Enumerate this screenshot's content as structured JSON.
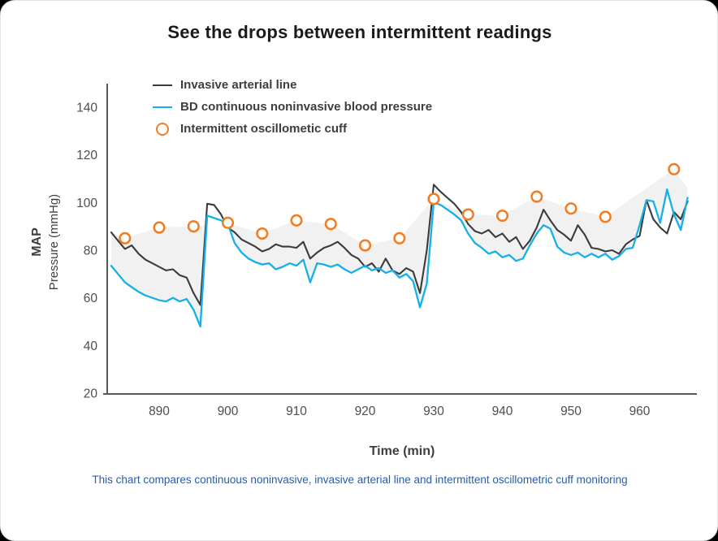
{
  "title": "See the drops between intermittent readings",
  "caption": "This chart compares continuous noninvasive, invasive arterial line and intermittent oscillometric cuff monitoring",
  "y_axis": {
    "label_line1": "MAP",
    "label_line2": "Pressure (mmHg)"
  },
  "x_axis": {
    "title": "Time (min)"
  },
  "chart_data": {
    "type": "line",
    "title": "See the drops between intermittent readings",
    "xlabel": "Time (min)",
    "ylabel": "MAP Pressure (mmHg)",
    "xlim": [
      882,
      968
    ],
    "ylim": [
      20,
      145
    ],
    "grid": false,
    "legend_position": "top-left",
    "x_ticks": [
      890,
      900,
      910,
      920,
      930,
      940,
      950,
      960
    ],
    "y_ticks": [
      20,
      40,
      60,
      80,
      100,
      120,
      140
    ],
    "x": [
      883,
      884,
      885,
      886,
      887,
      888,
      889,
      890,
      891,
      892,
      893,
      894,
      895,
      896,
      897,
      898,
      899,
      900,
      901,
      902,
      903,
      904,
      905,
      906,
      907,
      908,
      909,
      910,
      911,
      912,
      913,
      914,
      915,
      916,
      917,
      918,
      919,
      920,
      921,
      922,
      923,
      924,
      925,
      926,
      927,
      928,
      929,
      930,
      931,
      932,
      933,
      934,
      935,
      936,
      937,
      938,
      939,
      940,
      941,
      942,
      943,
      944,
      945,
      946,
      947,
      948,
      949,
      950,
      951,
      952,
      953,
      954,
      955,
      956,
      957,
      958,
      959,
      960,
      961,
      962,
      963,
      964,
      965,
      966,
      967
    ],
    "series": [
      {
        "name": "Invasive arterial line",
        "color": "#3b3b3d",
        "values": [
          87.5,
          84,
          80.5,
          82,
          78.5,
          76,
          74.5,
          73,
          71.5,
          72,
          69.5,
          68.5,
          62,
          57,
          99.5,
          99,
          95,
          89.5,
          87.5,
          84.5,
          83,
          81.5,
          79.5,
          80.5,
          82.5,
          81.5,
          81.5,
          81,
          83.5,
          76.5,
          79,
          81,
          82,
          83.5,
          81,
          78,
          76.5,
          73,
          74.5,
          71,
          76.5,
          71.5,
          70,
          72.5,
          71,
          62,
          80,
          107.5,
          104.5,
          102,
          99.5,
          96,
          91,
          88,
          87,
          88.5,
          85.5,
          87,
          83.5,
          85.5,
          80.5,
          84,
          89.5,
          97,
          92.5,
          88.5,
          86.5,
          84,
          90.5,
          86.5,
          81,
          80.5,
          79.5,
          80,
          78.5,
          82.5,
          84.5,
          86,
          101,
          93,
          89.5,
          87,
          96,
          93,
          100.5
        ]
      },
      {
        "name": "BD continuous noninvasive blood pressure",
        "color": "#16b0e8",
        "values": [
          73.5,
          70,
          66.5,
          64.5,
          62.5,
          61,
          60,
          59,
          58.5,
          60,
          58.5,
          59.5,
          55,
          48,
          94.5,
          93.5,
          92.5,
          91,
          83,
          79,
          76.5,
          75,
          74,
          74.5,
          72,
          73,
          74.5,
          73.5,
          76,
          66.5,
          74.5,
          74,
          73,
          74,
          72,
          70.5,
          72,
          73.5,
          71.5,
          72.5,
          70.5,
          71.5,
          68.5,
          70,
          67,
          56,
          66,
          100,
          99,
          97,
          95,
          92.5,
          87,
          83,
          81,
          78.5,
          79.5,
          77,
          78,
          75.5,
          76.5,
          82,
          87,
          90.5,
          89,
          81.5,
          79,
          78,
          79,
          77,
          78.5,
          77,
          78.5,
          76,
          77.5,
          80.5,
          81,
          90.5,
          101,
          100.5,
          91.5,
          105.5,
          95,
          88.5,
          102
        ]
      }
    ],
    "cuff_points": {
      "name": "Intermittent oscillometic cuff",
      "color": "#f47c20",
      "points": [
        [
          885,
          85
        ],
        [
          890,
          89.5
        ],
        [
          895,
          90
        ],
        [
          900,
          91.5
        ],
        [
          905,
          87
        ],
        [
          910,
          92.5
        ],
        [
          915,
          91
        ],
        [
          920,
          82
        ],
        [
          925,
          85
        ],
        [
          930,
          101.5
        ],
        [
          935,
          95
        ],
        [
          940,
          94.5
        ],
        [
          945,
          102.5
        ],
        [
          950,
          97.5
        ],
        [
          955,
          94
        ],
        [
          965,
          114
        ]
      ]
    },
    "band_top": [
      [
        883,
        87.5
      ],
      [
        885,
        85
      ],
      [
        890,
        89.5
      ],
      [
        895,
        90
      ],
      [
        900,
        91.5
      ],
      [
        905,
        87
      ],
      [
        910,
        92.5
      ],
      [
        915,
        91
      ],
      [
        920,
        82
      ],
      [
        925,
        85
      ],
      [
        930,
        101.5
      ],
      [
        935,
        95
      ],
      [
        940,
        94.5
      ],
      [
        945,
        102.5
      ],
      [
        950,
        97.5
      ],
      [
        955,
        94
      ],
      [
        965,
        114
      ],
      [
        967,
        106
      ]
    ],
    "colors": {
      "band": "#f1f1f1",
      "axis": "#57585a",
      "tick_text": "#4d4e50"
    }
  },
  "legend": {
    "items": [
      {
        "label": "Invasive arterial line",
        "color": "#3b3b3d",
        "marker": "line"
      },
      {
        "label": "BD continuous noninvasive blood pressure",
        "color": "#16b0e8",
        "marker": "line"
      },
      {
        "label": "Intermittent oscillometic cuff",
        "color": "#f47c20",
        "marker": "ring"
      }
    ]
  }
}
